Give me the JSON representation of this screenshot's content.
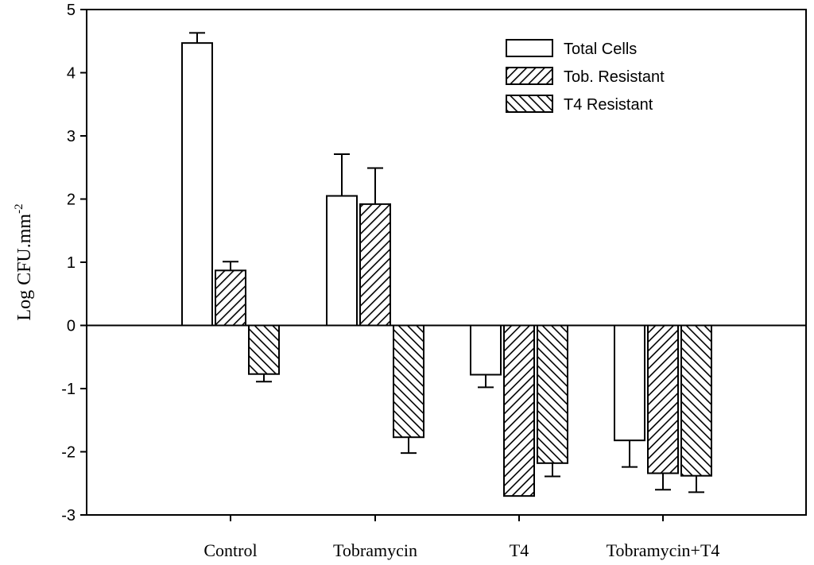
{
  "chart_data": {
    "type": "bar",
    "title": "",
    "xlabel": "",
    "ylabel": "Log CFU.mm",
    "ylabel_superscript": "-2",
    "ylim": [
      -3,
      5
    ],
    "yticks": [
      -3,
      -2,
      -1,
      0,
      1,
      2,
      3,
      4,
      5
    ],
    "ytick_labels": [
      "-3",
      "-2",
      "-1",
      "0",
      "1",
      "2",
      "3",
      "4",
      "5"
    ],
    "categories": [
      "Control",
      "Tobramycin",
      "T4",
      "Tobramycin+T4"
    ],
    "legend_position": "top-right",
    "series": [
      {
        "name": "Total Cells",
        "pattern": "none",
        "values": [
          4.47,
          2.05,
          -0.78,
          -1.82
        ],
        "errors": [
          0.16,
          0.66,
          0.2,
          0.42
        ]
      },
      {
        "name": "Tob. Resistant",
        "pattern": "diag-up",
        "values": [
          0.87,
          1.92,
          -2.7,
          -2.34
        ],
        "errors": [
          0.14,
          0.57,
          0.0,
          0.26
        ]
      },
      {
        "name": "T4 Resistant",
        "pattern": "diag-down",
        "values": [
          -0.77,
          -1.77,
          -2.18,
          -2.38
        ],
        "errors": [
          0.12,
          0.25,
          0.21,
          0.26
        ]
      }
    ],
    "colors": {
      "bar_stroke": "#000000",
      "bar_fill": "#ffffff",
      "axis": "#000000"
    }
  }
}
